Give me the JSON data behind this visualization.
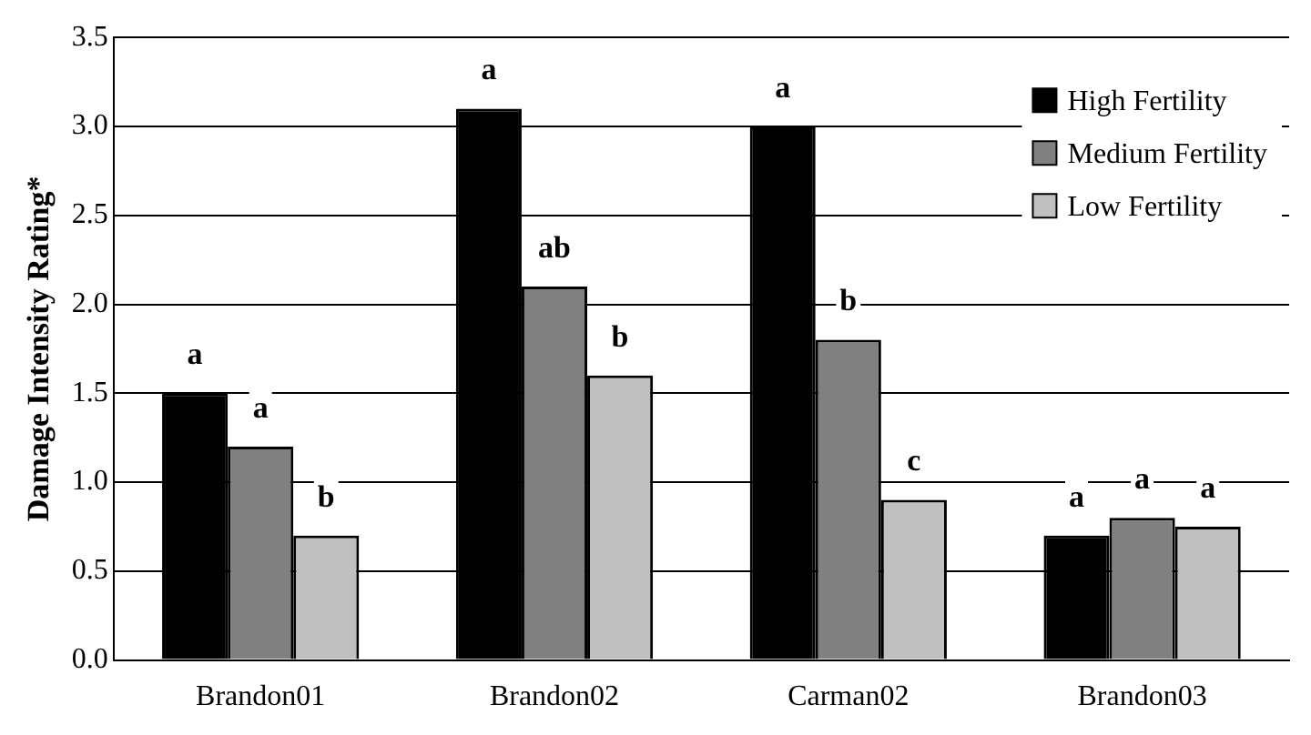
{
  "chart_data": {
    "type": "bar",
    "ylabel": "Damage Intensity Rating*",
    "categories": [
      "Brandon01",
      "Brandon02",
      "Carman02",
      "Brandon03"
    ],
    "series": [
      {
        "name": "High Fertility",
        "color": "#000000",
        "values": [
          1.5,
          3.1,
          3.0,
          0.7
        ],
        "value_labels": [
          "a",
          "a",
          "a",
          "a"
        ]
      },
      {
        "name": "Medium Fertility",
        "color": "#808080",
        "values": [
          1.2,
          2.1,
          1.8,
          0.8
        ],
        "value_labels": [
          "a",
          "ab",
          "b",
          "a"
        ]
      },
      {
        "name": "Low Fertility",
        "color": "#c0c0c0",
        "values": [
          0.7,
          1.6,
          0.9,
          0.75
        ],
        "value_labels": [
          "b",
          "b",
          "c",
          "a"
        ]
      }
    ],
    "ylim": [
      0,
      3.5
    ],
    "yticks": [
      {
        "value": 0,
        "label": "0.0"
      },
      0.5,
      {
        "value": 1,
        "label": "1.0"
      },
      1.5,
      {
        "value": 2,
        "label": "2.0"
      },
      2.5,
      {
        "value": 3,
        "label": "3.0"
      },
      3.5
    ],
    "grid": "y",
    "legend": "top right"
  }
}
